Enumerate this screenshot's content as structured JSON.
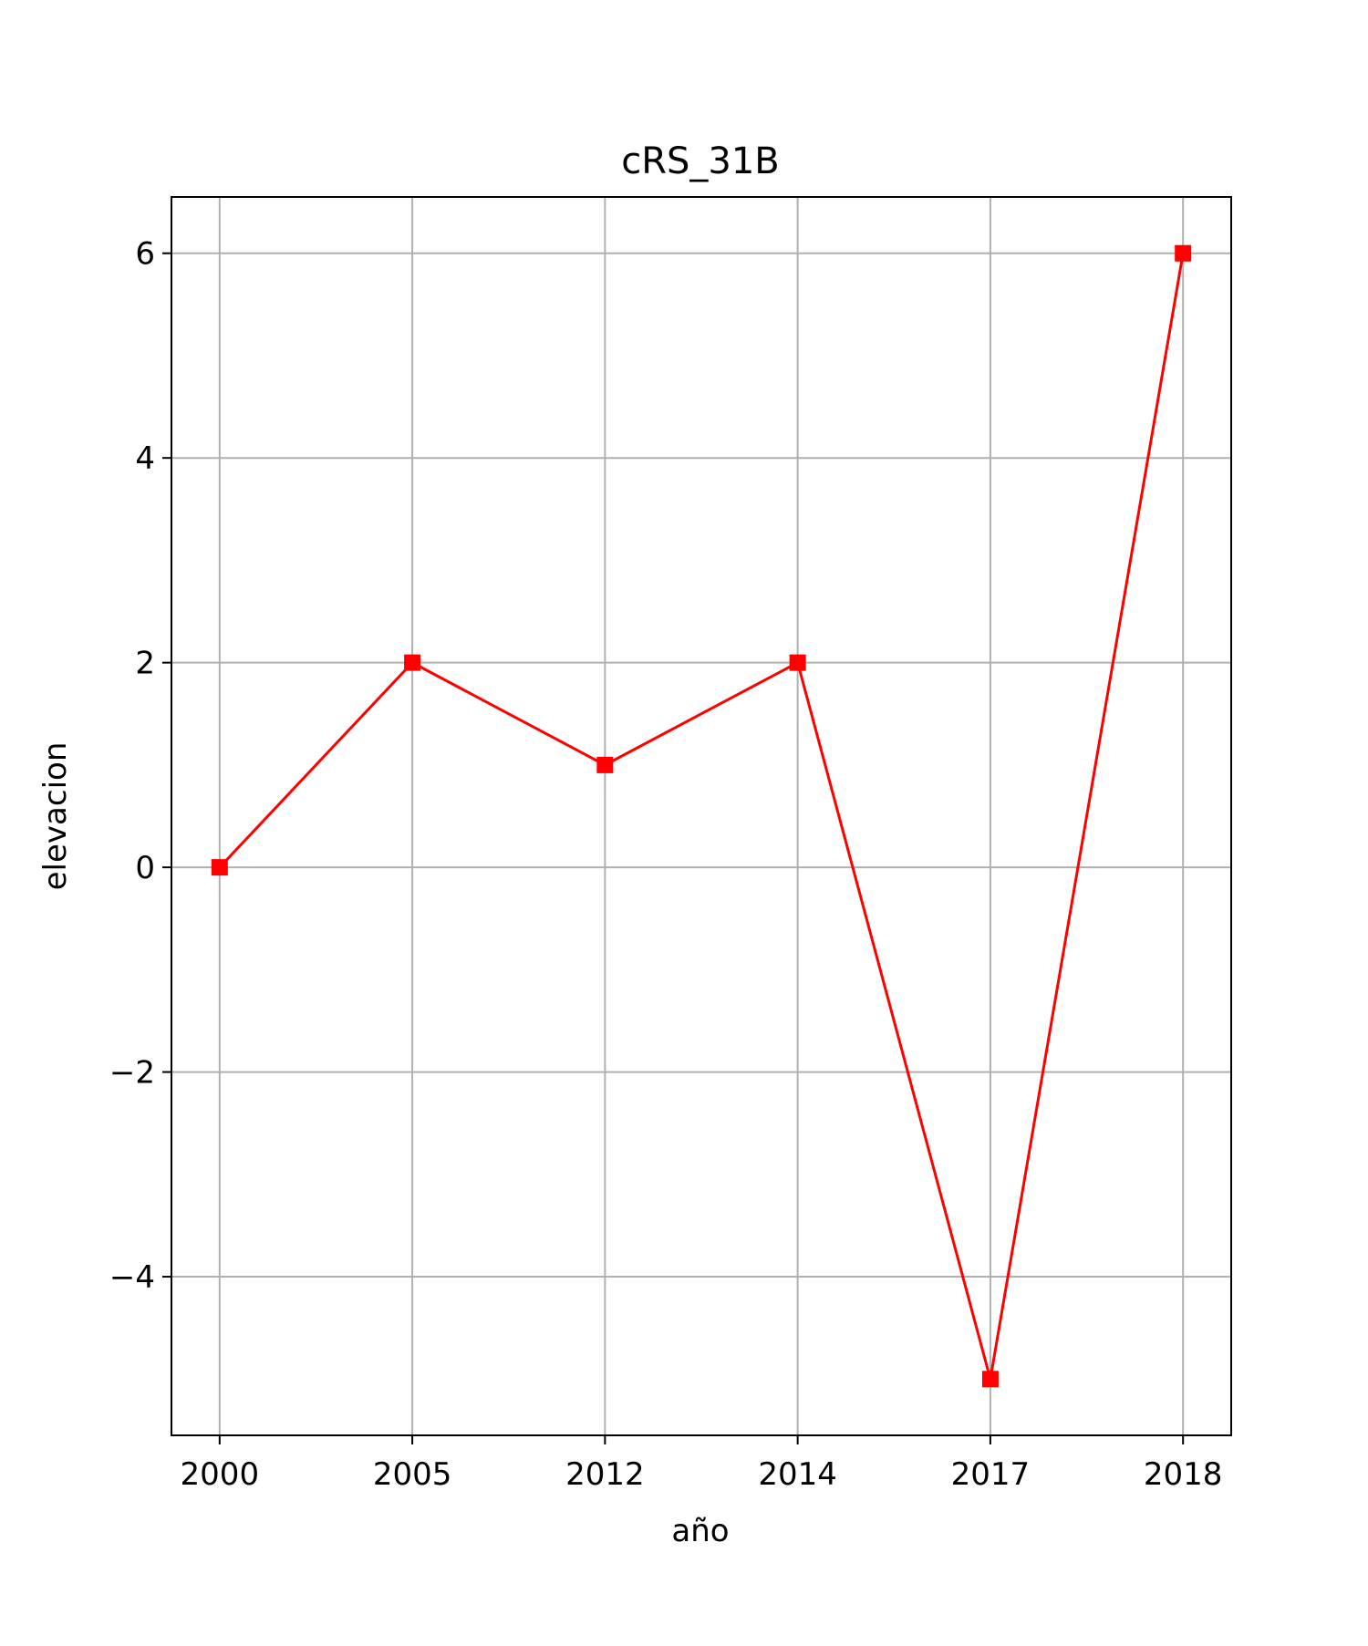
{
  "chart_data": {
    "type": "line",
    "title": "cRS_31B",
    "xlabel": "año",
    "ylabel": "elevacion",
    "categories": [
      "2000",
      "2005",
      "2012",
      "2014",
      "2017",
      "2018"
    ],
    "series": [
      {
        "values": [
          0,
          2,
          1,
          2,
          -5,
          6
        ],
        "color": "#ff0000",
        "marker": "square"
      }
    ],
    "yticks": [
      -4,
      -2,
      0,
      2,
      4,
      6
    ],
    "ytick_labels": [
      "−4",
      "−2",
      "0",
      "2",
      "4",
      "6"
    ],
    "ylim": [
      -5.55,
      6.55
    ],
    "grid": true,
    "colors": {
      "line": "#ff0000",
      "grid": "#b0b0b0",
      "axes": "#000000"
    }
  }
}
